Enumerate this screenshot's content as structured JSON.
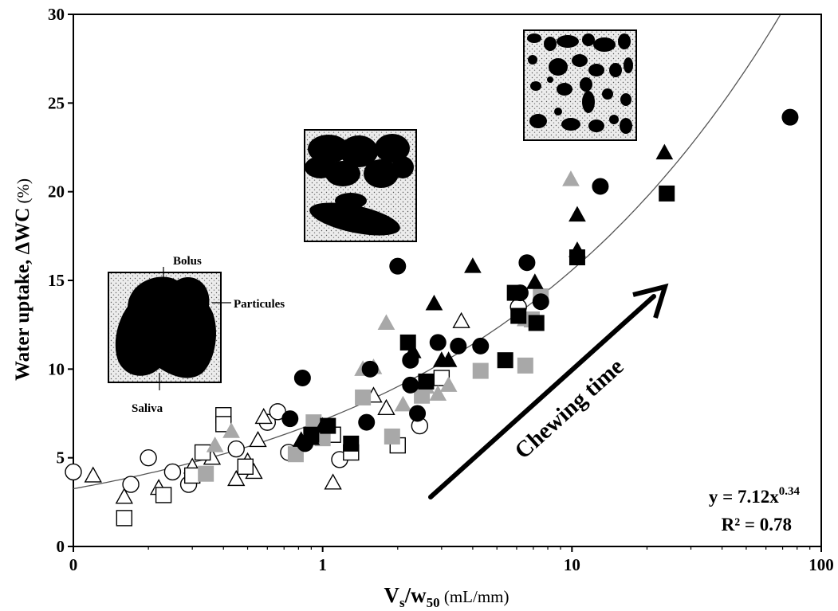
{
  "chart_data": {
    "type": "scatter",
    "xscale": "log",
    "xlim": [
      0.1,
      100
    ],
    "ylim": [
      0,
      30
    ],
    "xticks": [
      {
        "value": 0.1,
        "label": "0"
      },
      {
        "value": 1,
        "label": "1"
      },
      {
        "value": 10,
        "label": "10"
      },
      {
        "value": 100,
        "label": "100"
      }
    ],
    "yticks": [
      0,
      5,
      10,
      15,
      20,
      25,
      30
    ],
    "xlabel": {
      "main": "V",
      "sub1": "s",
      "mid": "/w",
      "sub2": "50",
      "unit": " (mL/mm)"
    },
    "ylabel": {
      "main": "Water uptake, ΔWC",
      "unit": " (%)"
    },
    "equation": {
      "line1_prefix": "y = 7.12x",
      "line1_exp": "0.34",
      "line2": "R² = 0.78"
    },
    "fit": {
      "a": 7.12,
      "b": 0.34
    },
    "arrow_label": "Chewing time",
    "inset_labels": {
      "bolus": "Bolus",
      "particules": "Particules",
      "saliva": "Saliva"
    },
    "colors": {
      "black": "#000000",
      "gray": "#a8a8a8",
      "white": "#ffffff"
    },
    "series": [
      {
        "marker": "circle",
        "fill": "black",
        "points": [
          [
            0.74,
            7.2
          ],
          [
            0.83,
            9.5
          ],
          [
            0.85,
            5.8
          ],
          [
            1.55,
            10
          ],
          [
            1.5,
            7
          ],
          [
            2.0,
            15.8
          ],
          [
            2.25,
            9.1
          ],
          [
            2.25,
            10.5
          ],
          [
            2.4,
            7.5
          ],
          [
            2.9,
            11.5
          ],
          [
            3.5,
            11.3
          ],
          [
            4.3,
            11.3
          ],
          [
            6.2,
            14.3
          ],
          [
            6.6,
            16
          ],
          [
            7.5,
            13.8
          ],
          [
            13,
            20.3
          ],
          [
            75,
            24.2
          ]
        ]
      },
      {
        "marker": "circle",
        "fill": "white",
        "points": [
          [
            0.1,
            4.2
          ],
          [
            0.17,
            3.5
          ],
          [
            0.2,
            5
          ],
          [
            0.25,
            4.2
          ],
          [
            0.29,
            3.5
          ],
          [
            0.45,
            5.5
          ],
          [
            0.6,
            7
          ],
          [
            0.66,
            7.6
          ],
          [
            0.73,
            5.3
          ],
          [
            1.17,
            4.9
          ],
          [
            2.45,
            6.8
          ],
          [
            6.1,
            13.5
          ]
        ]
      },
      {
        "marker": "triangle",
        "fill": "black",
        "points": [
          [
            0.82,
            6
          ],
          [
            0.9,
            6.1
          ],
          [
            1.0,
            6.8
          ],
          [
            2.3,
            11
          ],
          [
            2.8,
            13.7
          ],
          [
            3.0,
            10.5
          ],
          [
            3.2,
            10.5
          ],
          [
            4.0,
            15.8
          ],
          [
            7.1,
            14.9
          ],
          [
            10.5,
            18.7
          ],
          [
            10.5,
            16.7
          ],
          [
            23.5,
            22.2
          ]
        ]
      },
      {
        "marker": "triangle",
        "fill": "gray",
        "points": [
          [
            0.37,
            5.7
          ],
          [
            0.43,
            6.5
          ],
          [
            1.45,
            10
          ],
          [
            1.6,
            10.1
          ],
          [
            1.8,
            12.6
          ],
          [
            2.1,
            8
          ],
          [
            2.6,
            9
          ],
          [
            2.9,
            8.6
          ],
          [
            3.2,
            9.1
          ],
          [
            6.5,
            12.8
          ],
          [
            9.9,
            20.7
          ]
        ]
      },
      {
        "marker": "triangle",
        "fill": "white",
        "points": [
          [
            0.12,
            4
          ],
          [
            0.16,
            2.8
          ],
          [
            0.22,
            3.3
          ],
          [
            0.3,
            4.5
          ],
          [
            0.36,
            5
          ],
          [
            0.45,
            3.8
          ],
          [
            0.5,
            4.8
          ],
          [
            0.53,
            4.2
          ],
          [
            0.55,
            6
          ],
          [
            0.58,
            7.3
          ],
          [
            1.1,
            3.6
          ],
          [
            1.6,
            8.5
          ],
          [
            1.8,
            7.8
          ],
          [
            3.6,
            12.7
          ]
        ]
      },
      {
        "marker": "square",
        "fill": "black",
        "points": [
          [
            0.9,
            6.3
          ],
          [
            1.05,
            6.8
          ],
          [
            1.3,
            5.8
          ],
          [
            2.2,
            11.5
          ],
          [
            2.6,
            9.3
          ],
          [
            5.4,
            10.5
          ],
          [
            5.9,
            14.3
          ],
          [
            6.1,
            13
          ],
          [
            7.2,
            12.6
          ],
          [
            10.5,
            16.3
          ],
          [
            24,
            19.9
          ]
        ]
      },
      {
        "marker": "square",
        "fill": "gray",
        "points": [
          [
            0.34,
            4.1
          ],
          [
            0.78,
            5.2
          ],
          [
            0.92,
            7
          ],
          [
            1.0,
            6.1
          ],
          [
            1.45,
            8.4
          ],
          [
            1.9,
            6.2
          ],
          [
            2.5,
            8.5
          ],
          [
            4.3,
            9.9
          ],
          [
            6.5,
            10.2
          ],
          [
            6.9,
            12.8
          ],
          [
            7.5,
            14.1
          ]
        ]
      },
      {
        "marker": "square",
        "fill": "white",
        "points": [
          [
            0.16,
            1.6
          ],
          [
            0.23,
            2.9
          ],
          [
            0.3,
            4
          ],
          [
            0.33,
            5.3
          ],
          [
            0.4,
            7.4
          ],
          [
            0.4,
            6.9
          ],
          [
            0.49,
            4.5
          ],
          [
            1.1,
            6.3
          ],
          [
            1.3,
            5.3
          ],
          [
            2.0,
            5.7
          ],
          [
            3.0,
            9.5
          ]
        ]
      }
    ]
  }
}
